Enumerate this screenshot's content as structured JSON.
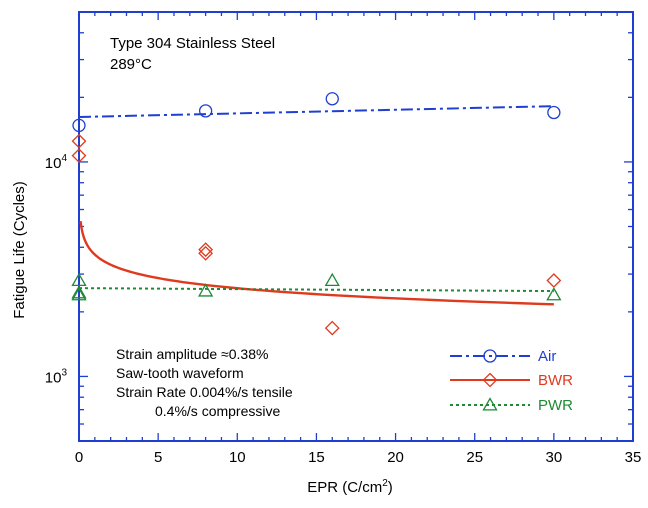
{
  "chart_data": {
    "type": "scatter",
    "title": "",
    "xlabel": "EPR (C/cm",
    "xlabel_sup": "2",
    "xlabel_end": ")",
    "ylabel": "Fatigue Life (Cycles)",
    "xlim": [
      0,
      35
    ],
    "ylim": [
      500,
      50000
    ],
    "yscale": "log",
    "grid": false,
    "legend_position": "bottom-right",
    "x_ticks": [
      "0",
      "5",
      "10",
      "15",
      "20",
      "25",
      "30",
      "35"
    ],
    "x_tick_values": [
      0,
      5,
      10,
      15,
      20,
      25,
      30,
      35
    ],
    "y_ticks": [
      {
        "base": "10",
        "exp": "3",
        "value": 1000
      },
      {
        "base": "10",
        "exp": "4",
        "value": 10000
      }
    ],
    "annotations_top": [
      "Type 304 Stainless Steel",
      "289°C"
    ],
    "annotations_bottom": [
      "Strain amplitude ≈0.38%",
      "Saw-tooth waveform",
      "Strain Rate 0.004%/s tensile",
      "0.4%/s compressive"
    ],
    "series": [
      {
        "name": "Air",
        "color": "#1f3fd1",
        "marker": "circle",
        "line_style": "dashdot",
        "points": [
          [
            0,
            14800
          ],
          [
            8,
            17300
          ],
          [
            16,
            19700
          ],
          [
            30,
            17000
          ]
        ],
        "fit": {
          "kind": "linear",
          "from": [
            0,
            16200
          ],
          "to": [
            30,
            18200
          ]
        }
      },
      {
        "name": "BWR",
        "color": "#e03a1e",
        "marker": "diamond",
        "line_style": "solid",
        "points": [
          [
            0,
            12500
          ],
          [
            0,
            10700
          ],
          [
            8,
            3900
          ],
          [
            8,
            3750
          ],
          [
            16,
            1680
          ],
          [
            30,
            2800
          ]
        ],
        "fit": {
          "kind": "power_decay",
          "a": 3700,
          "k": 0.157,
          "eps": 0.002,
          "from": 0.1,
          "to": 30
        }
      },
      {
        "name": "PWR",
        "color": "#1e8a36",
        "marker": "triangle",
        "line_style": "dotted",
        "points": [
          [
            0,
            2800
          ],
          [
            0,
            2400
          ],
          [
            0,
            2450
          ],
          [
            8,
            2500
          ],
          [
            16,
            2800
          ],
          [
            30,
            2400
          ]
        ],
        "fit": {
          "kind": "linear",
          "from": [
            0,
            2580
          ],
          "to": [
            30,
            2500
          ]
        }
      }
    ]
  }
}
